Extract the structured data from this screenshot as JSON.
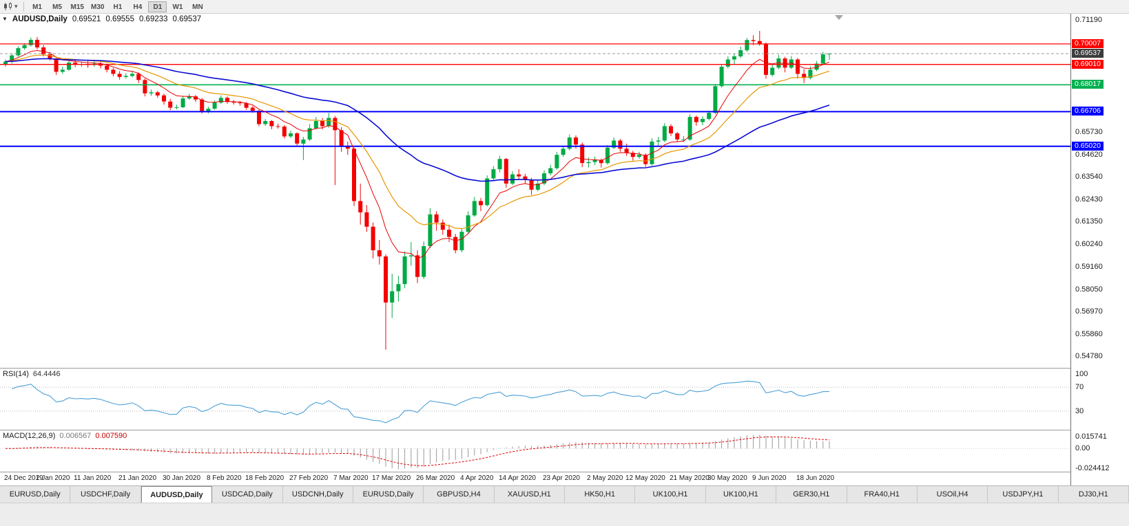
{
  "icons": {
    "one_click": "▼",
    "dropdown": "▾"
  },
  "toolbar": {
    "timeframes": [
      "M1",
      "M5",
      "M15",
      "M30",
      "H1",
      "H4",
      "D1",
      "W1",
      "MN"
    ],
    "active": "D1"
  },
  "main_chart": {
    "symbol_title": "AUDUSD,Daily",
    "ohlc": {
      "open": "0.69521",
      "high": "0.69555",
      "low": "0.69233",
      "close": "0.69537"
    },
    "price_axis": {
      "max": 0.7148,
      "min": 0.5425,
      "labels": [
        "0.71190",
        "0.65730",
        "0.64620",
        "0.63540",
        "0.62430",
        "0.61350",
        "0.60240",
        "0.59160",
        "0.58050",
        "0.56970",
        "0.55860",
        "0.54780"
      ]
    },
    "levels": [
      {
        "value": 0.70007,
        "label": "0.70007",
        "color": "#ff0000",
        "width": 1.3
      },
      {
        "value": 0.6901,
        "label": "0.69010",
        "color": "#ff0000",
        "width": 1.3
      },
      {
        "value": 0.68017,
        "label": "0.68017",
        "color": "#00b050",
        "width": 1.6
      },
      {
        "value": 0.66706,
        "label": "0.66706",
        "color": "#0000ff",
        "width": 2
      },
      {
        "value": 0.6502,
        "label": "0.65020",
        "color": "#0000ff",
        "width": 2
      }
    ],
    "current_price": {
      "value": 0.69537,
      "label": "0.69537",
      "badge_color": "#3c3c3c"
    }
  },
  "rsi_panel": {
    "header": "RSI(14)",
    "value": "64.4446",
    "period": 14,
    "levels": [
      "100",
      "70",
      "30"
    ],
    "line_color": "#4a9fd8"
  },
  "macd_panel": {
    "header": "MACD(12,26,9)",
    "value_macd": "0.006567",
    "value_signal": "0.007590",
    "axis_labels": {
      "max": "0.015741",
      "zero": "0.00",
      "min": "-0.024412"
    },
    "histogram_color": "#9a9a9a",
    "signal_color": "#e00000"
  },
  "bottom_tabs": {
    "tabs": [
      "EURUSD,Daily",
      "USDCHF,Daily",
      "AUDUSD,Daily",
      "USDCAD,Daily",
      "USDCNH,Daily",
      "EURUSD,Daily",
      "GBPUSD,H4",
      "XAUUSD,H1",
      "HK50,H1",
      "UK100,H1",
      "UK100,H1",
      "GER30,H1",
      "FRA40,H1",
      "USOil,H4",
      "USDJPY,H1",
      "DJ30,H1"
    ],
    "active_index": 2
  },
  "chart_data": {
    "type": "candlestick",
    "title": "AUDUSD,Daily",
    "price_range": {
      "min": 0.5425,
      "max": 0.7148
    },
    "up_color": "#00aa44",
    "down_color": "#f40000",
    "moving_averages": [
      {
        "name": "fast-ma",
        "period": 8,
        "method": "ema",
        "color": "#e60000",
        "width": 1
      },
      {
        "name": "medium-ma",
        "period": 18,
        "method": "ema",
        "color": "#e69500",
        "width": 1.2
      },
      {
        "name": "slow-ma",
        "period": 50,
        "method": "ema",
        "color": "#0a0ad2",
        "width": 1.6
      }
    ],
    "date_labels": [
      {
        "label": "24 Dec 2019",
        "i": 0
      },
      {
        "label": "2 Jan 2020",
        "i": 5
      },
      {
        "label": "11 Jan 2020",
        "i": 11
      },
      {
        "label": "21 Jan 2020",
        "i": 18
      },
      {
        "label": "30 Jan 2020",
        "i": 25
      },
      {
        "label": "8 Feb 2020",
        "i": 32
      },
      {
        "label": "18 Feb 2020",
        "i": 38
      },
      {
        "label": "27 Feb 2020",
        "i": 45
      },
      {
        "label": "7 Mar 2020",
        "i": 52
      },
      {
        "label": "17 Mar 2020",
        "i": 58
      },
      {
        "label": "26 Mar 2020",
        "i": 65
      },
      {
        "label": "4 Apr 2020",
        "i": 72
      },
      {
        "label": "14 Apr 2020",
        "i": 78
      },
      {
        "label": "23 Apr 2020",
        "i": 85
      },
      {
        "label": "2 May 2020",
        "i": 92
      },
      {
        "label": "12 May 2020",
        "i": 98
      },
      {
        "label": "21 May 2020",
        "i": 105
      },
      {
        "label": "30 May 2020",
        "i": 111
      },
      {
        "label": "9 Jun 2020",
        "i": 118
      },
      {
        "label": "18 Jun 2020",
        "i": 125
      }
    ],
    "candles": [
      [
        0.69,
        0.6925,
        0.689,
        0.6915
      ],
      [
        0.6915,
        0.6955,
        0.6905,
        0.6945
      ],
      [
        0.6945,
        0.699,
        0.6938,
        0.698
      ],
      [
        0.698,
        0.7005,
        0.6972,
        0.6995
      ],
      [
        0.6995,
        0.7032,
        0.6988,
        0.7021
      ],
      [
        0.7021,
        0.7035,
        0.6975,
        0.6984
      ],
      [
        0.6984,
        0.6995,
        0.694,
        0.695
      ],
      [
        0.695,
        0.6962,
        0.692,
        0.693
      ],
      [
        0.693,
        0.6938,
        0.685,
        0.6865
      ],
      [
        0.6865,
        0.689,
        0.6855,
        0.6875
      ],
      [
        0.6875,
        0.692,
        0.687,
        0.691
      ],
      [
        0.691,
        0.6925,
        0.6888,
        0.69
      ],
      [
        0.69,
        0.6915,
        0.689,
        0.6903
      ],
      [
        0.6903,
        0.6918,
        0.6885,
        0.6898
      ],
      [
        0.6898,
        0.692,
        0.689,
        0.6905
      ],
      [
        0.6905,
        0.6918,
        0.6882,
        0.6895
      ],
      [
        0.6895,
        0.6905,
        0.6862,
        0.6875
      ],
      [
        0.6875,
        0.6885,
        0.6843,
        0.6855
      ],
      [
        0.6855,
        0.6868,
        0.6827,
        0.684
      ],
      [
        0.684,
        0.6858,
        0.6832,
        0.6845
      ],
      [
        0.6845,
        0.687,
        0.6838,
        0.6855
      ],
      [
        0.6855,
        0.6862,
        0.681,
        0.6825
      ],
      [
        0.6825,
        0.6832,
        0.6745,
        0.676
      ],
      [
        0.676,
        0.6778,
        0.6748,
        0.6765
      ],
      [
        0.6765,
        0.6772,
        0.6738,
        0.675
      ],
      [
        0.675,
        0.6758,
        0.6705,
        0.672
      ],
      [
        0.672,
        0.6733,
        0.6678,
        0.669
      ],
      [
        0.669,
        0.6705,
        0.6682,
        0.6692
      ],
      [
        0.6692,
        0.6748,
        0.6688,
        0.6735
      ],
      [
        0.6735,
        0.6758,
        0.6728,
        0.6745
      ],
      [
        0.6745,
        0.6752,
        0.6718,
        0.673
      ],
      [
        0.673,
        0.6738,
        0.6662,
        0.667
      ],
      [
        0.667,
        0.6695,
        0.6662,
        0.6685
      ],
      [
        0.6685,
        0.6725,
        0.668,
        0.6715
      ],
      [
        0.6715,
        0.675,
        0.6708,
        0.6738
      ],
      [
        0.6738,
        0.6745,
        0.671,
        0.6718
      ],
      [
        0.6718,
        0.6728,
        0.6705,
        0.6715
      ],
      [
        0.6715,
        0.6723,
        0.67,
        0.6712
      ],
      [
        0.6712,
        0.6718,
        0.668,
        0.669
      ],
      [
        0.669,
        0.6698,
        0.6665,
        0.6675
      ],
      [
        0.6675,
        0.668,
        0.66,
        0.661
      ],
      [
        0.661,
        0.6635,
        0.6602,
        0.6625
      ],
      [
        0.6625,
        0.663,
        0.6585,
        0.66
      ],
      [
        0.66,
        0.6612,
        0.6588,
        0.6598
      ],
      [
        0.6598,
        0.6605,
        0.654,
        0.655
      ],
      [
        0.655,
        0.6578,
        0.6542,
        0.6565
      ],
      [
        0.6565,
        0.657,
        0.6505,
        0.6515
      ],
      [
        0.6515,
        0.6548,
        0.6435,
        0.6535
      ],
      [
        0.6535,
        0.661,
        0.6528,
        0.659
      ],
      [
        0.659,
        0.6645,
        0.6582,
        0.6625
      ],
      [
        0.6625,
        0.664,
        0.6585,
        0.66
      ],
      [
        0.66,
        0.6665,
        0.6592,
        0.664
      ],
      [
        0.664,
        0.665,
        0.6313,
        0.658
      ],
      [
        0.658,
        0.6595,
        0.6475,
        0.65
      ],
      [
        0.65,
        0.6525,
        0.646,
        0.649
      ],
      [
        0.649,
        0.6495,
        0.621,
        0.6235
      ],
      [
        0.6235,
        0.632,
        0.612,
        0.618
      ],
      [
        0.618,
        0.6215,
        0.6085,
        0.611
      ],
      [
        0.611,
        0.613,
        0.5955,
        0.5995
      ],
      [
        0.5995,
        0.6045,
        0.5925,
        0.5965
      ],
      [
        0.5965,
        0.5975,
        0.551,
        0.574
      ],
      [
        0.574,
        0.588,
        0.5665,
        0.5795
      ],
      [
        0.5795,
        0.587,
        0.5745,
        0.583
      ],
      [
        0.583,
        0.599,
        0.581,
        0.5965
      ],
      [
        0.5965,
        0.6035,
        0.592,
        0.597
      ],
      [
        0.597,
        0.5995,
        0.5835,
        0.5865
      ],
      [
        0.5865,
        0.6038,
        0.5855,
        0.6015
      ],
      [
        0.6015,
        0.62,
        0.6005,
        0.617
      ],
      [
        0.617,
        0.6185,
        0.609,
        0.613
      ],
      [
        0.613,
        0.6145,
        0.607,
        0.6095
      ],
      [
        0.6095,
        0.612,
        0.6035,
        0.606
      ],
      [
        0.606,
        0.6075,
        0.598,
        0.5995
      ],
      [
        0.5995,
        0.61,
        0.5985,
        0.6085
      ],
      [
        0.6085,
        0.6185,
        0.6078,
        0.6165
      ],
      [
        0.6165,
        0.6255,
        0.6158,
        0.6235
      ],
      [
        0.6235,
        0.625,
        0.6185,
        0.6215
      ],
      [
        0.6215,
        0.636,
        0.6208,
        0.6345
      ],
      [
        0.6345,
        0.6405,
        0.6335,
        0.639
      ],
      [
        0.639,
        0.6455,
        0.6375,
        0.644
      ],
      [
        0.644,
        0.6445,
        0.63,
        0.632
      ],
      [
        0.632,
        0.638,
        0.6312,
        0.6365
      ],
      [
        0.6365,
        0.639,
        0.634,
        0.6355
      ],
      [
        0.6355,
        0.6368,
        0.632,
        0.634
      ],
      [
        0.634,
        0.6348,
        0.6265,
        0.629
      ],
      [
        0.629,
        0.6335,
        0.6282,
        0.632
      ],
      [
        0.632,
        0.6385,
        0.6312,
        0.637
      ],
      [
        0.637,
        0.6412,
        0.636,
        0.6395
      ],
      [
        0.6395,
        0.6475,
        0.6388,
        0.646
      ],
      [
        0.646,
        0.6505,
        0.645,
        0.649
      ],
      [
        0.649,
        0.656,
        0.6482,
        0.6545
      ],
      [
        0.6545,
        0.6555,
        0.649,
        0.651
      ],
      [
        0.651,
        0.652,
        0.64,
        0.642
      ],
      [
        0.642,
        0.6448,
        0.6398,
        0.6425
      ],
      [
        0.6425,
        0.6452,
        0.641,
        0.6435
      ],
      [
        0.6435,
        0.6442,
        0.6398,
        0.642
      ],
      [
        0.642,
        0.6508,
        0.6412,
        0.6495
      ],
      [
        0.6495,
        0.6545,
        0.6488,
        0.653
      ],
      [
        0.653,
        0.6538,
        0.6475,
        0.649
      ],
      [
        0.649,
        0.6515,
        0.6455,
        0.647
      ],
      [
        0.647,
        0.648,
        0.6432,
        0.645
      ],
      [
        0.645,
        0.6475,
        0.6442,
        0.646
      ],
      [
        0.646,
        0.6468,
        0.6402,
        0.6415
      ],
      [
        0.6415,
        0.654,
        0.6408,
        0.6525
      ],
      [
        0.6525,
        0.6548,
        0.6505,
        0.653
      ],
      [
        0.653,
        0.6615,
        0.6522,
        0.66
      ],
      [
        0.66,
        0.661,
        0.6552,
        0.6565
      ],
      [
        0.6565,
        0.6572,
        0.6522,
        0.6535
      ],
      [
        0.6535,
        0.6552,
        0.6522,
        0.6535
      ],
      [
        0.6535,
        0.6658,
        0.6528,
        0.6645
      ],
      [
        0.6645,
        0.6652,
        0.6602,
        0.662
      ],
      [
        0.662,
        0.6648,
        0.6605,
        0.6635
      ],
      [
        0.6635,
        0.6675,
        0.6628,
        0.6665
      ],
      [
        0.6665,
        0.6805,
        0.6658,
        0.6795
      ],
      [
        0.6795,
        0.6898,
        0.6788,
        0.689
      ],
      [
        0.689,
        0.694,
        0.6882,
        0.6925
      ],
      [
        0.6925,
        0.6955,
        0.69,
        0.694
      ],
      [
        0.694,
        0.6988,
        0.6932,
        0.697
      ],
      [
        0.697,
        0.703,
        0.6962,
        0.702
      ],
      [
        0.702,
        0.7043,
        0.6995,
        0.7015
      ],
      [
        0.7015,
        0.7064,
        0.6992,
        0.7
      ],
      [
        0.7,
        0.7008,
        0.6832,
        0.685
      ],
      [
        0.685,
        0.6905,
        0.6842,
        0.6885
      ],
      [
        0.6885,
        0.6948,
        0.6878,
        0.693
      ],
      [
        0.693,
        0.6938,
        0.6862,
        0.6885
      ],
      [
        0.6885,
        0.6942,
        0.6878,
        0.6925
      ],
      [
        0.6925,
        0.6932,
        0.6832,
        0.6855
      ],
      [
        0.6855,
        0.6878,
        0.681,
        0.6835
      ],
      [
        0.6835,
        0.6892,
        0.6828,
        0.6875
      ],
      [
        0.6875,
        0.6918,
        0.6868,
        0.6905
      ],
      [
        0.6905,
        0.6962,
        0.6898,
        0.695
      ],
      [
        0.69521,
        0.69555,
        0.69233,
        0.69537
      ]
    ]
  }
}
